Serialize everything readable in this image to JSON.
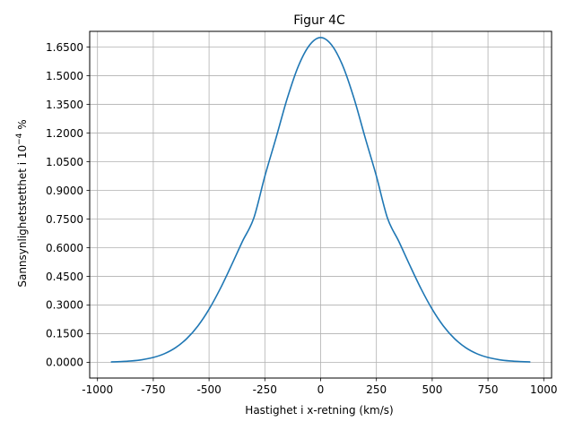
{
  "chart_data": {
    "type": "line",
    "title": "Figur 4C",
    "xlabel": "Hastighet i x-retning (km/s)",
    "ylabel_main": "Sannsynlighetstetthet i 10",
    "ylabel_exp": "−4",
    "ylabel_unit": " %",
    "xlim": [
      -1035,
      1035
    ],
    "ylim": [
      -0.0825,
      1.7325
    ],
    "x_ticks": [
      -1000,
      -750,
      -500,
      -250,
      0,
      250,
      500,
      750,
      1000
    ],
    "x_tick_labels": [
      "-1000",
      "-750",
      "-500",
      "-250",
      "0",
      "250",
      "500",
      "750",
      "1000"
    ],
    "y_ticks": [
      0,
      0.15,
      0.3,
      0.45,
      0.6,
      0.75,
      0.9,
      1.05,
      1.2,
      1.35,
      1.5,
      1.65
    ],
    "y_tick_labels": [
      "0.0000",
      "0.1500",
      "0.3000",
      "0.4500",
      "0.6000",
      "0.7500",
      "0.9000",
      "1.0500",
      "1.2000",
      "1.3500",
      "1.5000",
      "1.6500"
    ],
    "grid": true,
    "series": [
      {
        "color": "#1f77b4",
        "x": [
          -940,
          -900,
          -850,
          -800,
          -750,
          -700,
          -650,
          -600,
          -550,
          -500,
          -450,
          -400,
          -350,
          -300,
          -250,
          -200,
          -150,
          -100,
          -50,
          0,
          50,
          100,
          150,
          200,
          250,
          300,
          350,
          400,
          450,
          500,
          550,
          600,
          650,
          700,
          750,
          800,
          850,
          900,
          940
        ],
        "y": [
          0.0018,
          0.0033,
          0.0068,
          0.0134,
          0.0252,
          0.045,
          0.0766,
          0.1239,
          0.1903,
          0.2777,
          0.385,
          0.5069,
          0.634,
          0.7534,
          0.974,
          1.174,
          1.38,
          1.55,
          1.66,
          1.7,
          1.66,
          1.55,
          1.38,
          1.174,
          0.974,
          0.7534,
          0.634,
          0.5069,
          0.385,
          0.2777,
          0.1903,
          0.1239,
          0.0766,
          0.045,
          0.0252,
          0.0134,
          0.0068,
          0.0033,
          0.0018
        ]
      }
    ]
  }
}
